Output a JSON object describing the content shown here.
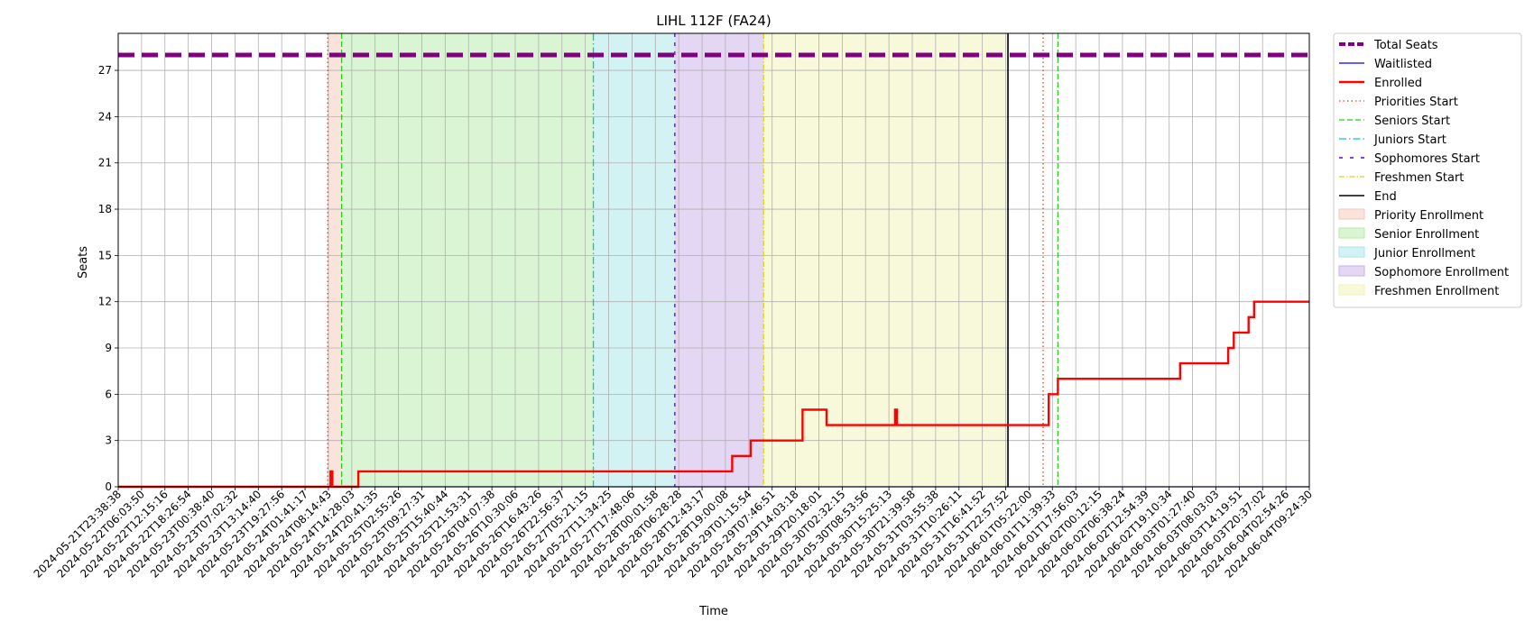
{
  "chart_data": {
    "type": "line",
    "title": "LIHL 112F (FA24)",
    "xlabel": "Time",
    "ylabel": "Seats",
    "x_range": [
      "2024-05-21T23:38:38",
      "2024-06-04T09:24:30"
    ],
    "ylim": [
      0,
      29.4
    ],
    "yticks": [
      0,
      3,
      6,
      9,
      12,
      15,
      18,
      21,
      24,
      27
    ],
    "grid": true,
    "legend_position": "outside-right",
    "xtick_labels": [
      "2024-05-21T23:38:38",
      "2024-05-22T06:03:50",
      "2024-05-22T12:15:16",
      "2024-05-22T18:26:54",
      "2024-05-23T00:38:40",
      "2024-05-23T07:02:32",
      "2024-05-23T13:14:40",
      "2024-05-23T19:27:56",
      "2024-05-24T01:41:17",
      "2024-05-24T08:14:43",
      "2024-05-24T14:28:03",
      "2024-05-24T20:41:35",
      "2024-05-25T02:55:26",
      "2024-05-25T09:27:31",
      "2024-05-25T15:40:44",
      "2024-05-25T21:53:31",
      "2024-05-26T04:07:38",
      "2024-05-26T10:30:06",
      "2024-05-26T16:43:26",
      "2024-05-26T22:56:37",
      "2024-05-27T05:21:15",
      "2024-05-27T11:34:25",
      "2024-05-27T17:48:06",
      "2024-05-28T00:01:58",
      "2024-05-28T06:28:28",
      "2024-05-28T12:43:17",
      "2024-05-28T19:00:08",
      "2024-05-29T01:15:54",
      "2024-05-29T07:46:51",
      "2024-05-29T14:03:18",
      "2024-05-29T20:18:01",
      "2024-05-30T02:32:15",
      "2024-05-30T08:53:56",
      "2024-05-30T15:25:13",
      "2024-05-30T21:39:58",
      "2024-05-31T03:55:38",
      "2024-05-31T10:26:11",
      "2024-05-31T16:41:52",
      "2024-05-31T22:57:52",
      "2024-06-01T05:22:00",
      "2024-06-01T11:39:33",
      "2024-06-01T17:56:03",
      "2024-06-02T00:12:15",
      "2024-06-02T06:38:24",
      "2024-06-02T12:54:39",
      "2024-06-02T19:10:34",
      "2024-06-03T01:27:40",
      "2024-06-03T08:03:03",
      "2024-06-03T14:19:51",
      "2024-06-03T20:37:02",
      "2024-06-04T02:54:26",
      "2024-06-04T09:24:30"
    ],
    "phases": [
      {
        "name": "Priority Enrollment",
        "start": "2024-05-24T08:14:43",
        "end": "2024-05-24T12:00:00",
        "color": "#f4c7b8"
      },
      {
        "name": "Senior Enrollment",
        "start": "2024-05-24T12:00:00",
        "end": "2024-05-27T08:00:00",
        "color": "#b5eba8"
      },
      {
        "name": "Junior Enrollment",
        "start": "2024-05-27T08:00:00",
        "end": "2024-05-28T06:00:00",
        "color": "#a6e6ea"
      },
      {
        "name": "Sophomore Enrollment",
        "start": "2024-05-28T06:00:00",
        "end": "2024-05-29T06:00:00",
        "color": "#c7b0ea"
      },
      {
        "name": "Freshmen Enrollment",
        "start": "2024-05-29T06:00:00",
        "end": "2024-06-01T00:00:00",
        "color": "#f2f2b8"
      }
    ],
    "markers": [
      {
        "name": "Priorities Start",
        "x": "2024-05-24T08:14:43",
        "color": "#e8412a",
        "dash": "1.5,3"
      },
      {
        "name": "Seniors Start",
        "x": "2024-05-24T12:00:00",
        "color": "#2ecc1e",
        "dash": "6,3"
      },
      {
        "name": "Juniors Start",
        "x": "2024-05-27T08:00:00",
        "color": "#00c8cc",
        "dash": "8,3,1.5,3"
      },
      {
        "name": "Sophomores Start",
        "x": "2024-05-28T06:00:00",
        "color": "#5a00e6",
        "dash": "4,6"
      },
      {
        "name": "Freshmen Start",
        "x": "2024-05-29T06:00:00",
        "color": "#dcd41a",
        "dash": "6,2,1.5,2"
      },
      {
        "name": "End",
        "x": "2024-06-01T00:00:00",
        "color": "#000000",
        "dash": ""
      },
      {
        "name": "Priorities Start",
        "x": "2024-06-01T09:30:00",
        "color": "#e8412a",
        "dash": "1.5,3"
      },
      {
        "name": "Seniors Start",
        "x": "2024-06-01T13:30:00",
        "color": "#2ecc1e",
        "dash": "6,3"
      }
    ],
    "series": [
      {
        "name": "Total Seats",
        "color": "#800080",
        "style": "dashed-thick",
        "points": [
          [
            "2024-05-21T23:38:38",
            28
          ],
          [
            "2024-06-04T09:24:30",
            28
          ]
        ]
      },
      {
        "name": "Waitlisted",
        "color": "#0000ff",
        "style": "solid-thin",
        "points": [
          [
            "2024-05-21T23:38:38",
            0
          ],
          [
            "2024-06-04T09:24:30",
            0
          ]
        ]
      },
      {
        "name": "Enrolled",
        "color": "#ff0000",
        "style": "solid-thick",
        "points": [
          [
            "2024-05-21T23:38:38",
            0
          ],
          [
            "2024-05-24T09:00:00",
            0
          ],
          [
            "2024-05-24T09:00:00",
            1
          ],
          [
            "2024-05-24T09:30:00",
            1
          ],
          [
            "2024-05-24T09:30:00",
            0
          ],
          [
            "2024-05-24T16:30:00",
            0
          ],
          [
            "2024-05-24T16:30:00",
            1
          ],
          [
            "2024-05-28T21:30:00",
            1
          ],
          [
            "2024-05-28T21:30:00",
            2
          ],
          [
            "2024-05-29T02:30:00",
            2
          ],
          [
            "2024-05-29T02:30:00",
            3
          ],
          [
            "2024-05-29T16:30:00",
            3
          ],
          [
            "2024-05-29T16:30:00",
            5
          ],
          [
            "2024-05-29T23:00:00",
            5
          ],
          [
            "2024-05-29T23:00:00",
            4
          ],
          [
            "2024-05-30T17:30:00",
            4
          ],
          [
            "2024-05-30T17:30:00",
            5
          ],
          [
            "2024-05-30T18:00:00",
            5
          ],
          [
            "2024-05-30T18:00:00",
            4
          ],
          [
            "2024-06-01T11:00:00",
            4
          ],
          [
            "2024-06-01T11:00:00",
            6
          ],
          [
            "2024-06-01T13:30:00",
            6
          ],
          [
            "2024-06-01T13:30:00",
            7
          ],
          [
            "2024-06-02T22:30:00",
            7
          ],
          [
            "2024-06-02T22:30:00",
            8
          ],
          [
            "2024-06-03T11:30:00",
            8
          ],
          [
            "2024-06-03T11:30:00",
            9
          ],
          [
            "2024-06-03T13:00:00",
            9
          ],
          [
            "2024-06-03T13:00:00",
            10
          ],
          [
            "2024-06-03T17:00:00",
            10
          ],
          [
            "2024-06-03T17:00:00",
            11
          ],
          [
            "2024-06-03T18:30:00",
            11
          ],
          [
            "2024-06-03T18:30:00",
            12
          ],
          [
            "2024-06-04T09:24:30",
            12
          ]
        ]
      }
    ],
    "legend": [
      {
        "label": "Total Seats",
        "kind": "line",
        "color": "#800080",
        "dash": "7,3",
        "width": 4
      },
      {
        "label": "Waitlisted",
        "kind": "line",
        "color": "#0000ff",
        "dash": "",
        "width": 1.2
      },
      {
        "label": "Enrolled",
        "kind": "line",
        "color": "#ff0000",
        "dash": "",
        "width": 2.4
      },
      {
        "label": "Priorities Start",
        "kind": "line",
        "color": "#e8412a",
        "dash": "1.5,3",
        "width": 1.3
      },
      {
        "label": "Seniors Start",
        "kind": "line",
        "color": "#2ecc1e",
        "dash": "6,3",
        "width": 1.3
      },
      {
        "label": "Juniors Start",
        "kind": "line",
        "color": "#00c8cc",
        "dash": "8,3,1.5,3",
        "width": 1.3
      },
      {
        "label": "Sophomores Start",
        "kind": "line",
        "color": "#5a00e6",
        "dash": "4,8",
        "width": 1.6
      },
      {
        "label": "Freshmen Start",
        "kind": "line",
        "color": "#dcd41a",
        "dash": "6,2,1.5,2",
        "width": 1.3
      },
      {
        "label": "End",
        "kind": "line",
        "color": "#000000",
        "dash": "",
        "width": 1.6
      },
      {
        "label": "Priority Enrollment",
        "kind": "patch",
        "color": "#f4c7b8"
      },
      {
        "label": "Senior Enrollment",
        "kind": "patch",
        "color": "#b5eba8"
      },
      {
        "label": "Junior Enrollment",
        "kind": "patch",
        "color": "#a6e6ea"
      },
      {
        "label": "Sophomore Enrollment",
        "kind": "patch",
        "color": "#c7b0ea"
      },
      {
        "label": "Freshmen Enrollment",
        "kind": "patch",
        "color": "#f2f2b8"
      }
    ]
  }
}
